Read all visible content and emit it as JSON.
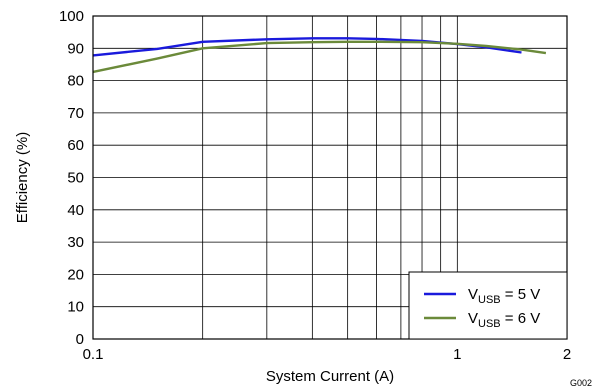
{
  "chart_data": {
    "type": "line",
    "xlabel": "System Current (A)",
    "ylabel": "Efficiency (%)",
    "xscale": "log",
    "xlim": [
      0.1,
      2
    ],
    "ylim": [
      0,
      100
    ],
    "x_tick_labels": [
      "0.1",
      "1",
      "2"
    ],
    "y_tick_labels": [
      "0",
      "10",
      "20",
      "30",
      "40",
      "50",
      "60",
      "70",
      "80",
      "90",
      "100"
    ],
    "grid": true,
    "legend_position": "bottom-right",
    "figure_code": "G002",
    "series": [
      {
        "name_main": "V",
        "name_sub": "USB",
        "name_rest": " = 5 V",
        "color": "#1a1adc",
        "x": [
          0.1,
          0.15,
          0.2,
          0.3,
          0.4,
          0.5,
          0.6,
          0.8,
          1.0,
          1.2,
          1.5
        ],
        "y": [
          87.8,
          89.8,
          92.0,
          92.8,
          93.1,
          93.1,
          92.9,
          92.3,
          91.3,
          90.3,
          88.7
        ]
      },
      {
        "name_main": "V",
        "name_sub": "USB",
        "name_rest": " = 6 V",
        "color": "#6b8a3a",
        "x": [
          0.1,
          0.15,
          0.2,
          0.3,
          0.4,
          0.5,
          0.6,
          0.8,
          1.0,
          1.2,
          1.5,
          1.75
        ],
        "y": [
          82.7,
          86.8,
          90.0,
          91.6,
          91.9,
          92.0,
          92.0,
          91.9,
          91.4,
          90.7,
          89.6,
          88.5
        ]
      }
    ]
  }
}
